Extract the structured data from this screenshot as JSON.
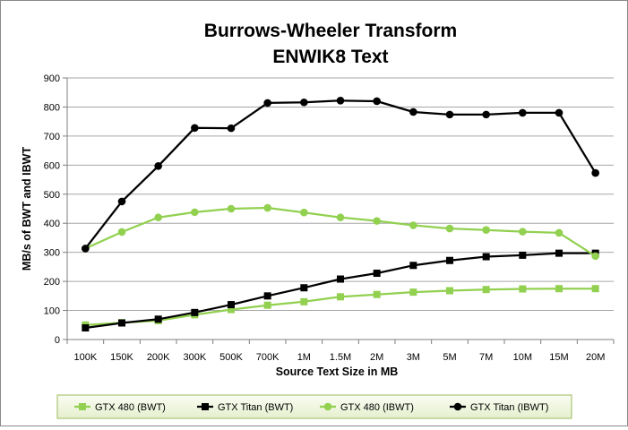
{
  "chart_data": {
    "type": "line",
    "title_lines": [
      "Burrows-Wheeler Transform",
      "ENWIK8 Text"
    ],
    "xlabel": "Source Text Size in MB",
    "ylabel": "MB/s of BWT and IBWT",
    "ylim": [
      0,
      900
    ],
    "yticks": [
      0,
      100,
      200,
      300,
      400,
      500,
      600,
      700,
      800,
      900
    ],
    "grid": true,
    "legend_position": "bottom",
    "categories": [
      "100K",
      "150K",
      "200K",
      "300K",
      "500K",
      "700K",
      "1M",
      "1.5M",
      "2M",
      "3M",
      "5M",
      "7M",
      "10M",
      "15M",
      "20M"
    ],
    "series": [
      {
        "name": "GTX 480 (BWT)",
        "color": "#92d050",
        "marker": "square",
        "values": [
          50,
          58,
          65,
          85,
          103,
          118,
          130,
          147,
          155,
          163,
          168,
          172,
          174,
          175,
          175
        ]
      },
      {
        "name": "GTX Titan (BWT)",
        "color": "#000000",
        "marker": "square",
        "values": [
          40,
          57,
          70,
          93,
          120,
          150,
          178,
          208,
          228,
          255,
          272,
          285,
          290,
          297,
          297
        ]
      },
      {
        "name": "GTX 480 (IBWT)",
        "color": "#92d050",
        "marker": "circle",
        "values": [
          313,
          370,
          420,
          438,
          450,
          453,
          437,
          420,
          408,
          393,
          382,
          377,
          371,
          367,
          287
        ]
      },
      {
        "name": "GTX Titan (IBWT)",
        "color": "#000000",
        "marker": "circle",
        "values": [
          313,
          475,
          597,
          728,
          727,
          814,
          816,
          822,
          820,
          783,
          774,
          774,
          780,
          780,
          573
        ]
      }
    ]
  }
}
